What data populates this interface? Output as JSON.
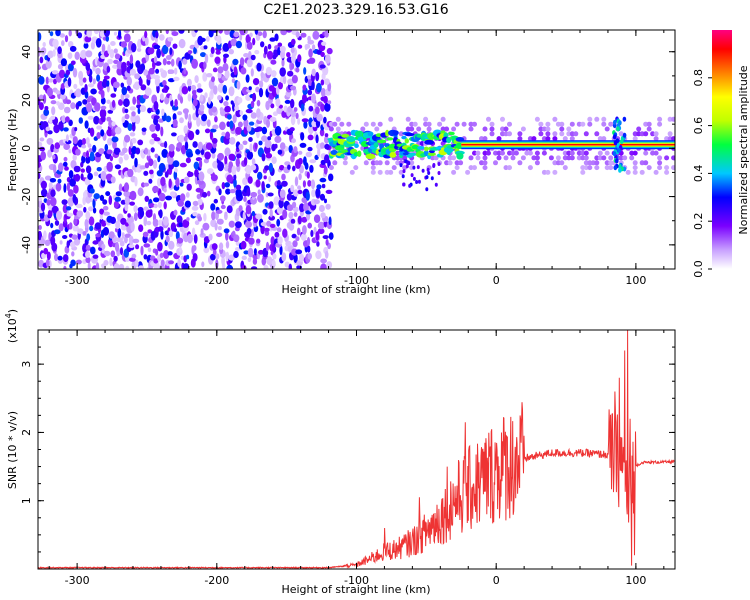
{
  "title": "C2E1.2023.329.16.53.G16",
  "chart_data": [
    {
      "type": "heatmap",
      "xlabel": "Height of straight line (km)",
      "ylabel": "Frequency (Hz)",
      "xlim": [
        -328,
        128
      ],
      "ylim": [
        -50,
        49
      ],
      "xticks": [
        -300,
        -200,
        -100,
        0,
        100
      ],
      "xtick_labels": [
        "-300",
        "-200",
        "-100",
        "0",
        "100"
      ],
      "yticks": [
        -40,
        -20,
        0,
        20,
        40
      ],
      "ytick_labels": [
        "-40",
        "-20",
        "0",
        "20",
        "40"
      ],
      "colorbar": {
        "label": "Normalized spectral amplitude",
        "range": [
          0,
          1
        ],
        "ticks": [
          0.0,
          0.2,
          0.4,
          0.6,
          0.8
        ],
        "tick_labels": [
          "0.0",
          "0.2",
          "0.4",
          "0.6",
          "0.8"
        ],
        "colors": [
          "#ffffff",
          "#c8a0ff",
          "#7a00ff",
          "#0000ff",
          "#00c8ff",
          "#00ff40",
          "#c0ff00",
          "#ffff00",
          "#ff8000",
          "#ff0000",
          "#ff0080"
        ]
      },
      "features": {
        "noise_region_x": [
          -328,
          -118
        ],
        "noise_amplitude": 0.3,
        "signal_start_x": -118,
        "carrier_frequency": 1.5,
        "carrier_amplitude": 0.92,
        "carrier_x": [
          -25,
          128
        ],
        "spike_x": 88
      },
      "grid": false
    },
    {
      "type": "line",
      "xlabel": "Height of straight line (km)",
      "ylabel": "SNR (10 * v/v)",
      "y_multiplier": "(x10",
      "y_multiplier_exp": "4",
      "y_multiplier_close": ")",
      "xlim": [
        -328,
        128
      ],
      "ylim": [
        0,
        3.5
      ],
      "xticks": [
        -300,
        -200,
        -100,
        0,
        100
      ],
      "xtick_labels": [
        "-300",
        "-200",
        "-100",
        "0",
        "100"
      ],
      "yticks": [
        1,
        2,
        3
      ],
      "ytick_labels": [
        "1",
        "2",
        "3"
      ],
      "series": [
        {
          "color": "#ee3333",
          "points": [
            [
              -328,
              0.02
            ],
            [
              -120,
              0.02
            ],
            [
              -100,
              0.06
            ],
            [
              -90,
              0.15
            ],
            [
              -80,
              0.25
            ],
            [
              -70,
              0.3
            ],
            [
              -60,
              0.4
            ],
            [
              -50,
              0.55
            ],
            [
              -40,
              0.75
            ],
            [
              -30,
              1.0
            ],
            [
              -20,
              1.15
            ],
            [
              -10,
              1.3
            ],
            [
              0,
              1.45
            ],
            [
              10,
              1.55
            ],
            [
              20,
              1.62
            ],
            [
              30,
              1.66
            ],
            [
              40,
              1.7
            ],
            [
              50,
              1.7
            ],
            [
              60,
              1.7
            ],
            [
              70,
              1.69
            ],
            [
              80,
              1.67
            ],
            [
              85,
              1.65
            ],
            [
              90,
              1.55
            ],
            [
              95,
              0.9
            ],
            [
              98,
              1.5
            ],
            [
              105,
              1.56
            ],
            [
              128,
              1.57
            ]
          ],
          "peaks": [
            [
              -22,
              2.15
            ],
            [
              -35,
              1.5
            ],
            [
              -55,
              1.05
            ],
            [
              -80,
              0.6
            ],
            [
              20,
              1.95
            ],
            [
              85,
              2.6
            ],
            [
              88,
              2.8
            ],
            [
              92,
              3.2
            ],
            [
              94,
              3.5
            ],
            [
              96,
              2.2
            ],
            [
              97,
              0.05
            ],
            [
              99,
              0.2
            ]
          ]
        }
      ],
      "grid": false
    }
  ]
}
